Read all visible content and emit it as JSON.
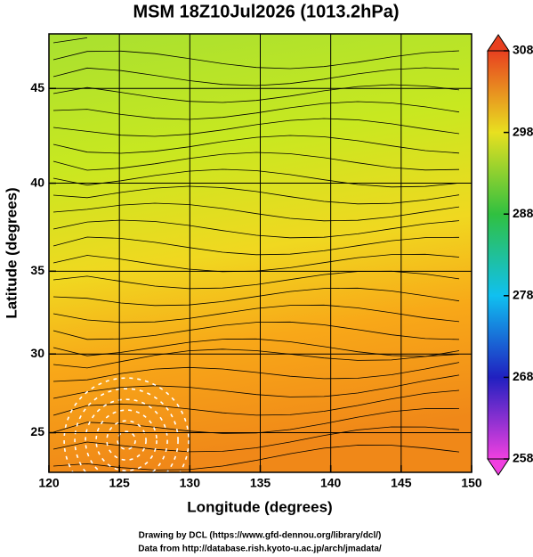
{
  "chart_data": {
    "type": "map",
    "title": "MSM 18Z10Jul2026 (1013.2hPa)",
    "x_label": "Longitude (degrees)",
    "y_label": "Latitude  (degrees)",
    "xlim": [
      120,
      150
    ],
    "xticks": [
      120,
      125,
      130,
      135,
      140,
      145,
      150
    ],
    "ylim": [
      22.4,
      47.7
    ],
    "yticks": [
      25,
      30,
      35,
      40,
      45
    ],
    "grid": true,
    "colorbar": {
      "lim": [
        258,
        308
      ],
      "ticks": [
        258,
        268,
        278,
        288,
        298,
        308
      ],
      "colors": [
        "#f040e0",
        "#2020c0",
        "#10c0f0",
        "#30c040",
        "#e8e020",
        "#e84020"
      ]
    },
    "credits": [
      "Drawing by DCL (https://www.gfd-dennou.org/library/dcl/)",
      "Data from http://database.rish.kyoto-u.ac.jp/arch/jmadata/"
    ]
  }
}
